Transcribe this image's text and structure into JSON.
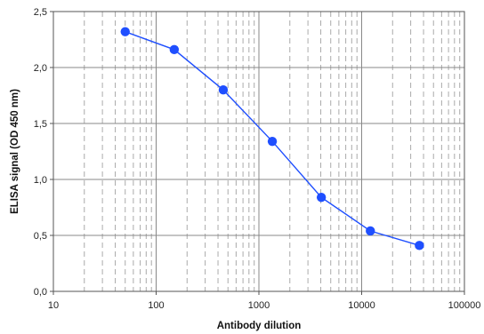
{
  "chart_data": {
    "type": "line",
    "xlabel": "Antibody dilution",
    "ylabel": "ELISA signal (OD 450 nm)",
    "xscale": "log",
    "xlim": [
      10,
      100000
    ],
    "ylim": [
      0,
      2.5
    ],
    "x_ticks": [
      "10",
      "100",
      "1000",
      "10000",
      "100000"
    ],
    "y_ticks": [
      "0,0",
      "0,5",
      "1,0",
      "1,5",
      "2,0",
      "2,5"
    ],
    "grid": "major solid, minor dashed",
    "series": [
      {
        "color": "#1f4fff",
        "marker": "circle",
        "x": [
          50,
          150,
          450,
          1350,
          4050,
          12150,
          36450
        ],
        "y": [
          2.32,
          2.16,
          1.8,
          1.34,
          0.84,
          0.54,
          0.41
        ]
      }
    ]
  }
}
